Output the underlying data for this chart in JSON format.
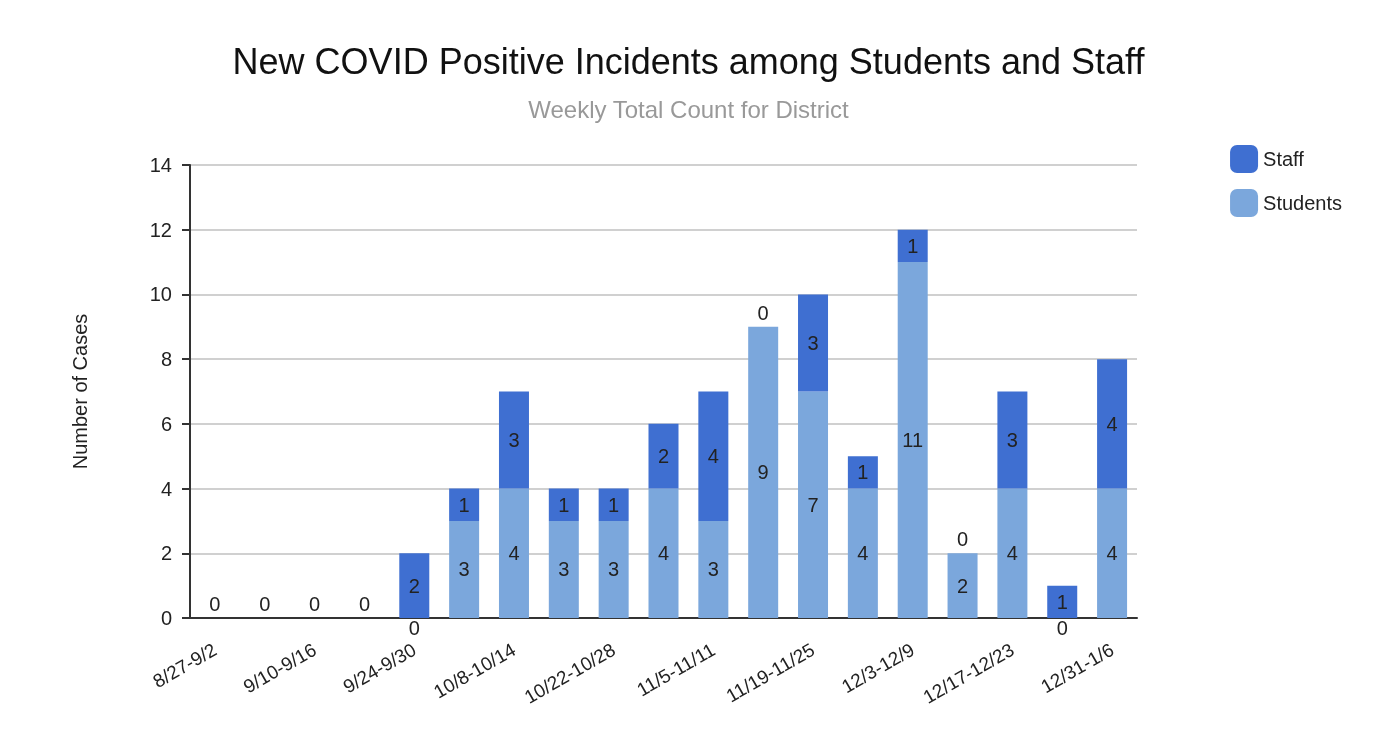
{
  "chart_data": {
    "type": "bar",
    "title": "New COVID Positive Incidents among Students and Staff",
    "subtitle": "Weekly Total Count for District",
    "ylabel": "Number of Cases",
    "categories": [
      "8/27-9/2",
      null,
      "9/10-9/16",
      null,
      "9/24-9/30",
      null,
      "10/8-10/14",
      null,
      "10/22-10/28",
      null,
      "11/5-11/11",
      null,
      "11/19-11/25",
      null,
      "12/3-12/9",
      null,
      "12/17-12/23",
      null,
      "12/31-1/6"
    ],
    "series": [
      {
        "name": "Students",
        "color": "#7ba7dc",
        "values": [
          0,
          0,
          0,
          0,
          0,
          3,
          4,
          3,
          3,
          4,
          3,
          9,
          7,
          4,
          11,
          2,
          4,
          0,
          4
        ],
        "value_labels": [
          null,
          null,
          null,
          null,
          "0",
          "3",
          "4",
          "3",
          "3",
          "4",
          "3",
          "9",
          "7",
          "4",
          "11",
          "2",
          "4",
          "0",
          "4"
        ]
      },
      {
        "name": "Staff",
        "color": "#3f6fd1",
        "values": [
          0,
          0,
          0,
          0,
          2,
          1,
          3,
          1,
          1,
          2,
          4,
          0,
          3,
          1,
          1,
          0,
          3,
          1,
          4
        ],
        "value_labels": [
          "0",
          "0",
          "0",
          "0",
          "2",
          "1",
          "3",
          "1",
          "1",
          "2",
          "4",
          "0",
          "3",
          "1",
          "1",
          "0",
          "3",
          "1",
          "4"
        ]
      }
    ],
    "stacked": true,
    "ylim": [
      0,
      14
    ],
    "yticks": [
      0,
      2,
      4,
      6,
      8,
      10,
      12,
      14
    ],
    "grid": "y",
    "legend": "top right"
  }
}
